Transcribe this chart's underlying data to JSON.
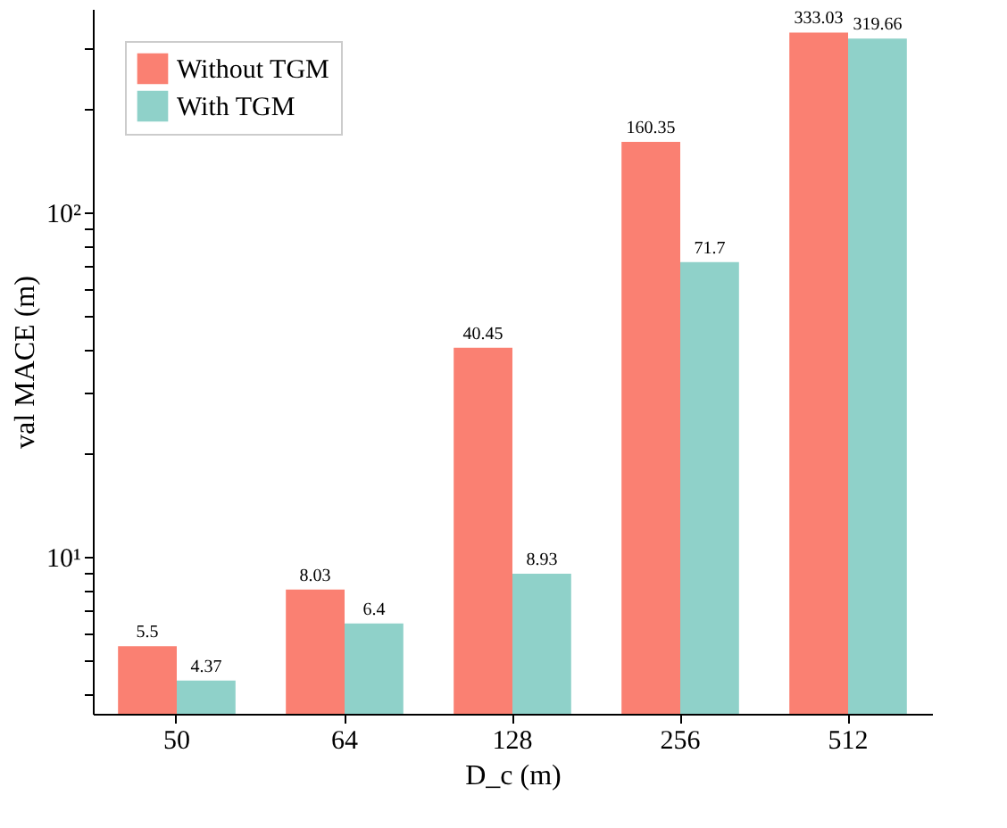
{
  "chart_data": {
    "type": "bar",
    "xlabel": "D_c (m)",
    "ylabel": "val MACE (m)",
    "categories": [
      "50",
      "64",
      "128",
      "256",
      "512"
    ],
    "series": [
      {
        "name": "Without TGM",
        "color": "#fa8072",
        "values": [
          5.5,
          8.03,
          40.45,
          160.35,
          333.03
        ]
      },
      {
        "name": "With TGM",
        "color": "#8fd1c9",
        "values": [
          4.37,
          6.4,
          8.93,
          71.7,
          319.66
        ]
      }
    ],
    "log": true,
    "ylim": [
      3.5,
      390
    ],
    "yticks": [
      {
        "value": 4,
        "label": null
      },
      {
        "value": 5,
        "label": null
      },
      {
        "value": 6,
        "label": null
      },
      {
        "value": 7,
        "label": null
      },
      {
        "value": 8,
        "label": null
      },
      {
        "value": 9,
        "label": null
      },
      {
        "value": 10,
        "label": "10¹"
      },
      {
        "value": 20,
        "label": null
      },
      {
        "value": 30,
        "label": null
      },
      {
        "value": 40,
        "label": null
      },
      {
        "value": 50,
        "label": null
      },
      {
        "value": 60,
        "label": null
      },
      {
        "value": 70,
        "label": null
      },
      {
        "value": 80,
        "label": null
      },
      {
        "value": 90,
        "label": null
      },
      {
        "value": 100,
        "label": "10²"
      },
      {
        "value": 200,
        "label": null
      },
      {
        "value": 300,
        "label": null
      }
    ],
    "data_labels": true,
    "legend": "top left",
    "grid": false
  }
}
